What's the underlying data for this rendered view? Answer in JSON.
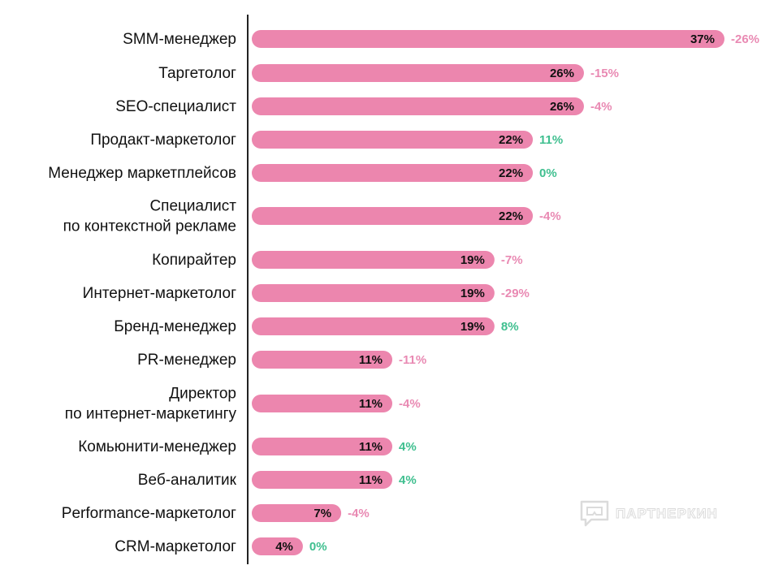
{
  "colors": {
    "bar": "#ec86ae",
    "negative": "#e98ab3",
    "positive": "#3fbf8f",
    "axis": "#222222"
  },
  "chart_data": {
    "type": "bar",
    "orientation": "horizontal",
    "title": "",
    "xlabel": "",
    "ylabel": "",
    "xlim": [
      0,
      37
    ],
    "categories": [
      [
        "SMM-менеджер"
      ],
      [
        "Таргетолог"
      ],
      [
        "SEO-специалист"
      ],
      [
        "Продакт-маркетолог"
      ],
      [
        "Менеджер маркетплейсов"
      ],
      [
        "Специалист",
        "по контекстной рекламе"
      ],
      [
        "Копирайтер"
      ],
      [
        "Интернет-маркетолог"
      ],
      [
        "Бренд-менеджер"
      ],
      [
        "PR-менеджер"
      ],
      [
        "Директор",
        "по интернет-маркетингу"
      ],
      [
        "Комьюнити-менеджер"
      ],
      [
        "Веб-аналитик"
      ],
      [
        "Performance-маркетолог"
      ],
      [
        "CRM-маркетолог"
      ]
    ],
    "values": [
      37,
      26,
      26,
      22,
      22,
      22,
      19,
      19,
      19,
      11,
      11,
      11,
      11,
      7,
      4
    ],
    "value_labels": [
      "37%",
      "26%",
      "26%",
      "22%",
      "22%",
      "22%",
      "19%",
      "19%",
      "19%",
      "11%",
      "11%",
      "11%",
      "11%",
      "7%",
      "4%"
    ],
    "changes": [
      -26,
      -15,
      -4,
      11,
      0,
      -4,
      -7,
      -29,
      8,
      -11,
      -4,
      4,
      4,
      -4,
      0
    ],
    "change_labels": [
      "-26%",
      "-15%",
      "-4%",
      "11%",
      "0%",
      "-4%",
      "-7%",
      "-29%",
      "8%",
      "-11%",
      "-4%",
      "4%",
      "4%",
      "-4%",
      "0%"
    ],
    "grid": false,
    "legend": "none"
  },
  "watermark": {
    "text": "ПАРТНЕРКИН",
    "icon": "speech-bubble-logo-icon"
  }
}
